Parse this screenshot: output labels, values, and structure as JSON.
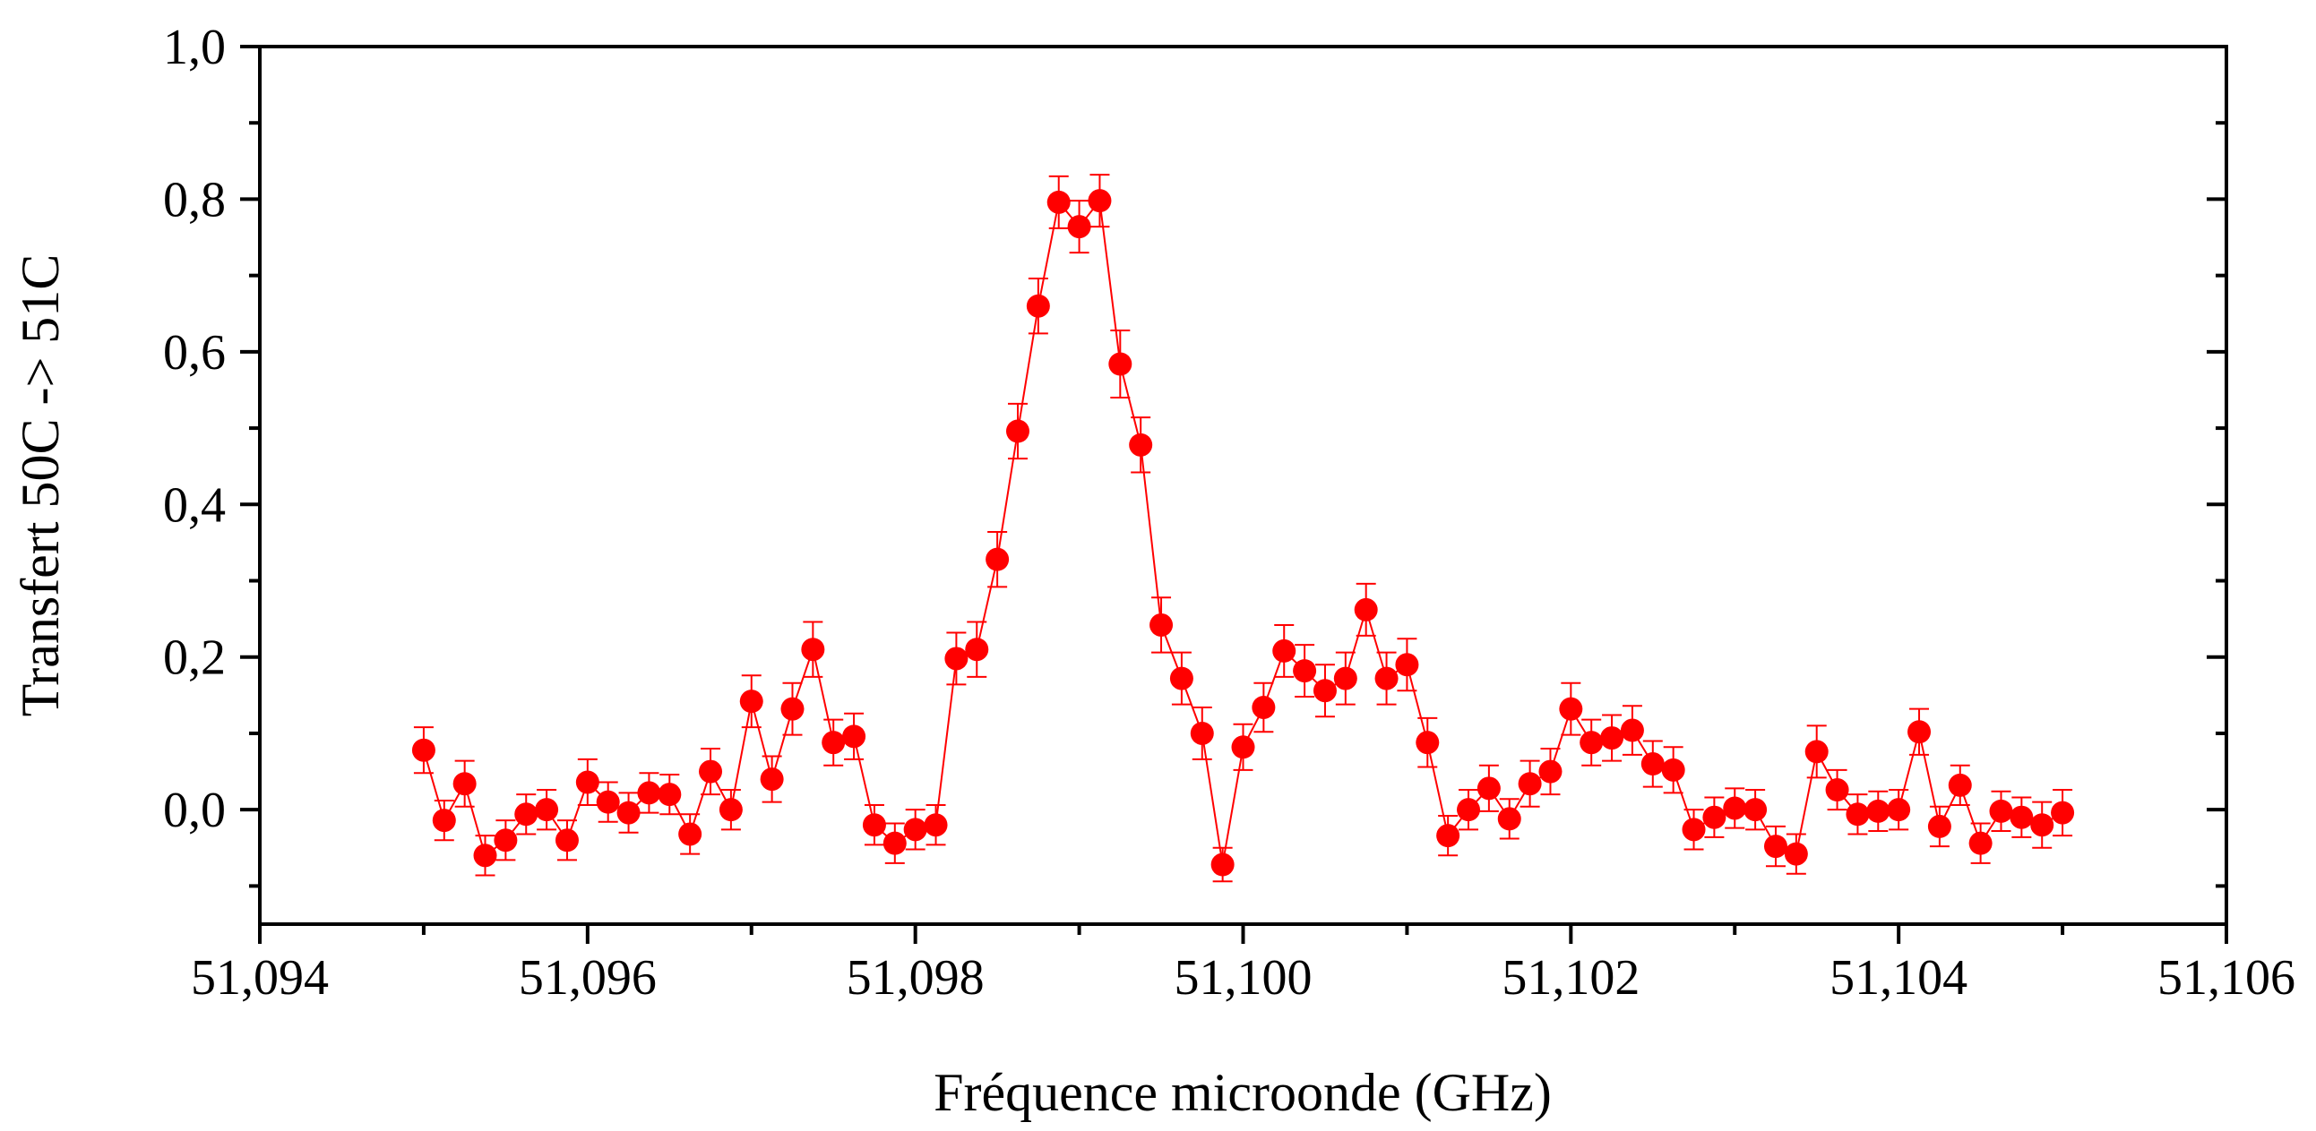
{
  "chart_data": {
    "type": "scatter",
    "xlabel": "Fréquence microonde (GHz)",
    "ylabel": "Transfert 50C -> 51C",
    "xlim": [
      51.094,
      51.106
    ],
    "ylim": [
      -0.15,
      1.0
    ],
    "x_ticks": [
      51.094,
      51.096,
      51.098,
      51.1,
      51.102,
      51.104,
      51.106
    ],
    "x_tick_labels": [
      "51,094",
      "51,096",
      "51,098",
      "51,100",
      "51,102",
      "51,104",
      "51,106"
    ],
    "y_ticks": [
      0.0,
      0.2,
      0.4,
      0.6,
      0.8,
      1.0
    ],
    "y_tick_labels": [
      "0,0",
      "0,2",
      "0,4",
      "0,6",
      "0,8",
      "1,0"
    ],
    "grid": false,
    "legend": "none",
    "color": "#ff0000",
    "series": [
      {
        "x": [
          51.095,
          51.095125,
          51.09525,
          51.095375,
          51.0955,
          51.095625,
          51.09575,
          51.095875,
          51.096,
          51.096125,
          51.09625,
          51.096375,
          51.0965,
          51.096625,
          51.09675,
          51.096875,
          51.097,
          51.097125,
          51.09725,
          51.097375,
          51.0975,
          51.097625,
          51.09775,
          51.097875,
          51.098,
          51.098125,
          51.09825,
          51.098375,
          51.0985,
          51.098625,
          51.09875,
          51.098875,
          51.099,
          51.099125,
          51.09925,
          51.099375,
          51.0995,
          51.099625,
          51.09975,
          51.099875,
          51.1,
          51.100125,
          51.10025,
          51.100375,
          51.1005,
          51.100625,
          51.10075,
          51.100875,
          51.101,
          51.101125,
          51.10125,
          51.101375,
          51.1015,
          51.101625,
          51.10175,
          51.101875,
          51.102,
          51.102125,
          51.10225,
          51.102375,
          51.1025,
          51.102625,
          51.10275,
          51.102875,
          51.103,
          51.103125,
          51.10325,
          51.103375,
          51.1035,
          51.103625,
          51.10375,
          51.103875,
          51.104,
          51.104125,
          51.10425,
          51.104375,
          51.1045,
          51.104625,
          51.10475,
          51.104875,
          51.105
        ],
        "y": [
          0.078,
          -0.014,
          0.034,
          -0.06,
          -0.04,
          -0.006,
          0.0,
          -0.04,
          0.036,
          0.01,
          -0.004,
          0.022,
          0.02,
          -0.032,
          0.05,
          0.0,
          0.142,
          0.04,
          0.132,
          0.21,
          0.088,
          0.096,
          -0.02,
          -0.044,
          -0.026,
          -0.02,
          0.198,
          0.21,
          0.328,
          0.496,
          0.66,
          0.796,
          0.764,
          0.798,
          0.584,
          0.478,
          0.242,
          0.172,
          0.1,
          -0.072,
          0.082,
          0.134,
          0.208,
          0.182,
          0.156,
          0.172,
          0.262,
          0.172,
          0.19,
          0.088,
          -0.034,
          0.0,
          0.028,
          -0.012,
          0.034,
          0.05,
          0.132,
          0.088,
          0.094,
          0.104,
          0.06,
          0.052,
          -0.026,
          -0.01,
          0.002,
          0.0,
          -0.048,
          -0.058,
          0.076,
          0.026,
          -0.006,
          -0.002,
          0.0,
          0.102,
          -0.022,
          0.032,
          -0.044,
          -0.002,
          -0.01,
          -0.02,
          -0.004
        ],
        "error": [
          0.03,
          0.026,
          0.03,
          0.026,
          0.026,
          0.026,
          0.026,
          0.026,
          0.03,
          0.026,
          0.026,
          0.026,
          0.026,
          0.026,
          0.03,
          0.026,
          0.034,
          0.03,
          0.034,
          0.036,
          0.03,
          0.03,
          0.026,
          0.026,
          0.026,
          0.026,
          0.034,
          0.036,
          0.036,
          0.036,
          0.036,
          0.034,
          0.034,
          0.034,
          0.044,
          0.036,
          0.036,
          0.034,
          0.034,
          0.022,
          0.03,
          0.032,
          0.034,
          0.034,
          0.034,
          0.034,
          0.034,
          0.034,
          0.034,
          0.032,
          0.026,
          0.026,
          0.03,
          0.026,
          0.03,
          0.03,
          0.034,
          0.03,
          0.03,
          0.032,
          0.03,
          0.03,
          0.026,
          0.026,
          0.026,
          0.026,
          0.026,
          0.026,
          0.034,
          0.026,
          0.026,
          0.026,
          0.026,
          0.03,
          0.026,
          0.026,
          0.026,
          0.026,
          0.026,
          0.03,
          0.03
        ]
      }
    ]
  }
}
